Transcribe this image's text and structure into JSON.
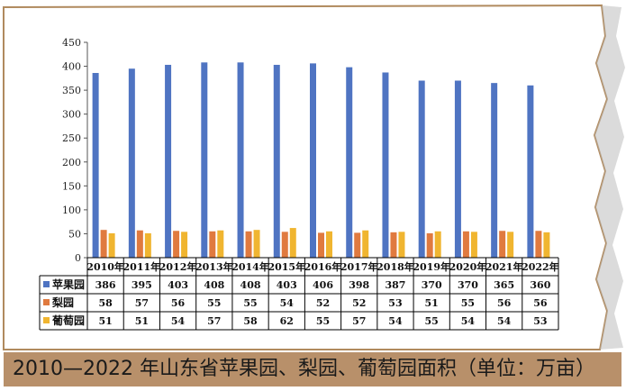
{
  "caption": "2010—2022 年山东省苹果园、梨园、葡萄园面积（单位：万亩）",
  "chart_data": {
    "type": "bar",
    "categories": [
      "2010年",
      "2011年",
      "2012年",
      "2013年",
      "2014年",
      "2015年",
      "2016年",
      "2017年",
      "2018年",
      "2019年",
      "2020年",
      "2021年",
      "2022年"
    ],
    "ylim": [
      0,
      450
    ],
    "yticks": [
      0,
      50,
      100,
      150,
      200,
      250,
      300,
      350,
      400,
      450
    ],
    "grid": false,
    "legend": "data-table-left",
    "series": [
      {
        "name": "苹果园",
        "color": "#4f74c2",
        "values": [
          386,
          395,
          403,
          408,
          408,
          403,
          406,
          398,
          387,
          370,
          370,
          365,
          360
        ]
      },
      {
        "name": "梨园",
        "color": "#e07a3f",
        "values": [
          58,
          57,
          56,
          55,
          55,
          54,
          52,
          52,
          53,
          51,
          55,
          56,
          56
        ]
      },
      {
        "name": "葡萄园",
        "color": "#f0b530",
        "values": [
          51,
          51,
          54,
          57,
          58,
          62,
          55,
          57,
          54,
          55,
          54,
          54,
          53
        ]
      }
    ]
  }
}
